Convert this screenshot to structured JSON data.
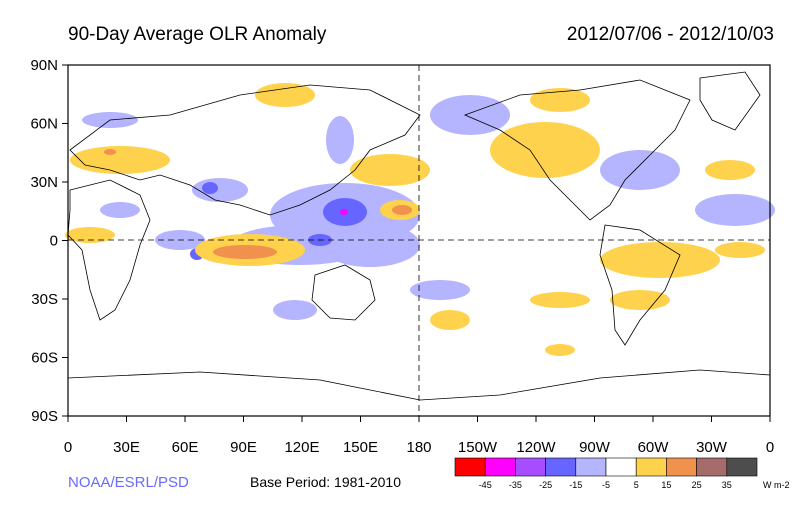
{
  "title": "90-Day Average OLR Anomaly",
  "date_range": "2012/07/06 - 2012/10/03",
  "credit": "NOAA/ESRL/PSD",
  "base_period": "Base Period: 1981-2010",
  "y_ticks": [
    "90N",
    "60N",
    "30N",
    "0",
    "30S",
    "60S",
    "90S"
  ],
  "x_ticks": [
    "0",
    "30E",
    "60E",
    "90E",
    "120E",
    "150E",
    "180",
    "150W",
    "120W",
    "90W",
    "60W",
    "30W",
    "0"
  ],
  "colorbar": {
    "colors": [
      "#ff0000",
      "#ff00ff",
      "#a64dff",
      "#6666ff",
      "#b4b4ff",
      "#ffffff",
      "#ffd24d",
      "#f0914d",
      "#a66b6b",
      "#4d4d4d"
    ],
    "labels": [
      "-45",
      "-35",
      "-25",
      "-15",
      "-5",
      "5",
      "15",
      "25",
      "35"
    ],
    "unit": "W m-2"
  },
  "palette": {
    "negative": "#b4b4ff",
    "negative_strong": "#6666ff",
    "positive": "#ffd24d",
    "positive_strong": "#f0914d",
    "frame": "#000000"
  }
}
